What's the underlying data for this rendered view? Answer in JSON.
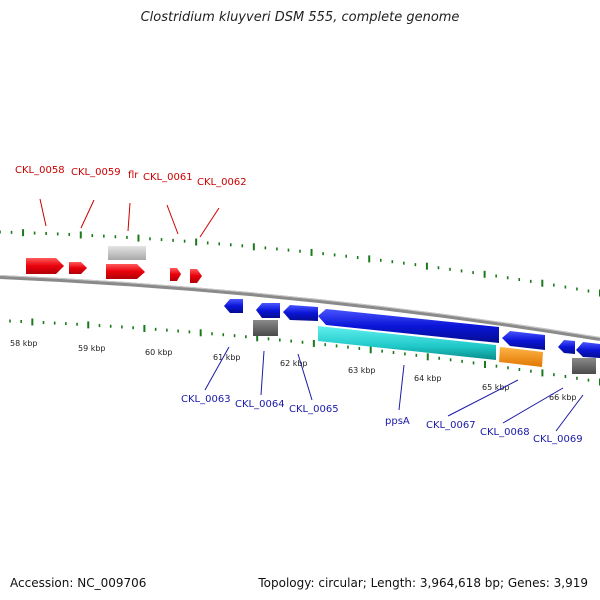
{
  "header": {
    "title": "Clostridium kluyveri DSM 555, complete genome"
  },
  "footer": {
    "accession": "Accession: NC_009706",
    "summary": "Topology: circular; Length: 3,964,618 bp; Genes: 3,919"
  },
  "scale": {
    "tick_labels": [
      "58 kbp",
      "59 kbp",
      "60 kbp",
      "61 kbp",
      "62 kbp",
      "63 kbp",
      "64 kbp",
      "65 kbp",
      "66 kbp"
    ]
  },
  "genes": {
    "forward": [
      "CKL_0058",
      "CKL_0059",
      "flr",
      "CKL_0061",
      "CKL_0062"
    ],
    "reverse": [
      "CKL_0063",
      "CKL_0064",
      "CKL_0065",
      "ppsA",
      "CKL_0067",
      "CKL_0068",
      "CKL_0069"
    ]
  },
  "colors": {
    "forward_gene": "#e8000b",
    "reverse_gene": "#0a15d8",
    "backbone": "#808080",
    "tick": "#1a7a1a",
    "cds_pseudo": "#bbbbbb",
    "cds_dark": "#666666",
    "cds_cyan": "#20c8c8",
    "cds_orange": "#ff8c00",
    "label_forward": "#cc0000",
    "label_reverse": "#1a1aa8"
  }
}
